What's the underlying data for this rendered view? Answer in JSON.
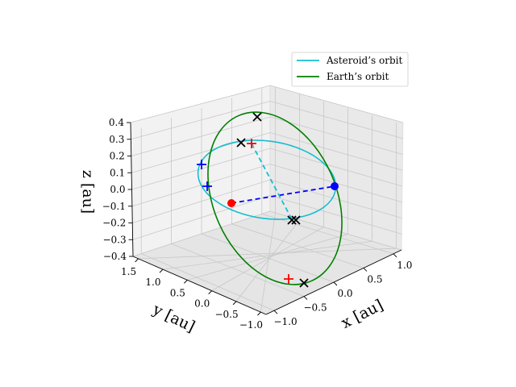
{
  "chart_data": {
    "type": "line3d",
    "title": "",
    "axes": {
      "x": {
        "label": "x [au]",
        "ticks": [
          "−1.0",
          "−0.5",
          "0.0",
          "0.5",
          "1.0"
        ]
      },
      "y": {
        "label": "y [au]",
        "ticks": [
          "1.5",
          "1.0",
          "0.5",
          "0.0",
          "−0.5",
          "−1.0"
        ]
      },
      "z": {
        "label": "z [au]",
        "ticks": [
          "0.4",
          "0.3",
          "0.2",
          "0.1",
          "0.0",
          "−0.1",
          "−0.2",
          "−0.3",
          "−0.4"
        ]
      }
    },
    "grid": true,
    "legend": {
      "placement": "top-right",
      "entries": [
        {
          "label": "Asteroid’s orbit",
          "color": "#17becf"
        },
        {
          "label": "Earth’s orbit",
          "color": "#008000"
        }
      ]
    },
    "series": [
      {
        "name": "Asteroid’s orbit",
        "color": "#17becf",
        "style": "solid",
        "shape": "ellipse"
      },
      {
        "name": "Earth’s orbit",
        "color": "#008000",
        "style": "solid",
        "shape": "ellipse"
      }
    ],
    "markers": [
      {
        "kind": "dot",
        "color": "#ff0000",
        "count": 1
      },
      {
        "kind": "dot",
        "color": "#0000ff",
        "count": 1
      },
      {
        "kind": "plus",
        "color": "#ff0000",
        "count": 2
      },
      {
        "kind": "plus",
        "color": "#0000ff",
        "count": 2
      },
      {
        "kind": "x",
        "color": "#000000",
        "count": 5
      }
    ],
    "connectors": [
      {
        "color": "#0000ff",
        "style": "dashed"
      },
      {
        "color": "#17becf",
        "style": "dashed"
      }
    ]
  }
}
